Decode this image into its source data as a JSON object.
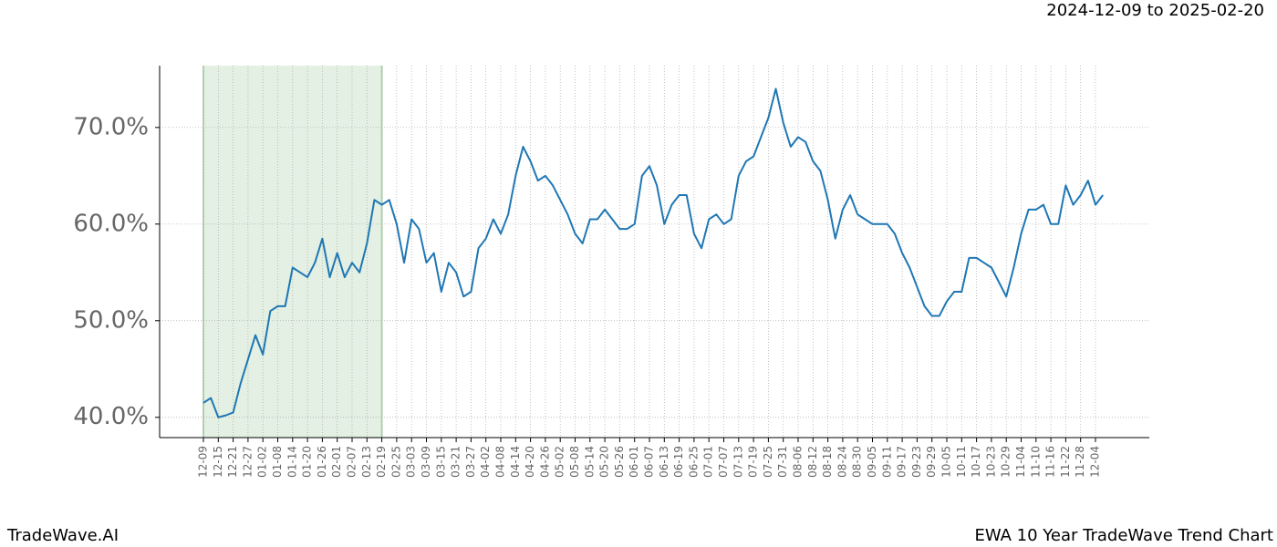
{
  "chart_data": {
    "type": "line",
    "date_range": "2024-12-09 to 2025-02-20",
    "brand": "TradeWave.AI",
    "title": "EWA 10 Year TradeWave Trend Chart",
    "categories": [
      "12-09",
      null,
      "12-15",
      null,
      "12-21",
      null,
      "12-27",
      null,
      "01-02",
      null,
      "01-08",
      null,
      "01-14",
      null,
      "01-20",
      null,
      "01-26",
      null,
      "02-01",
      null,
      "02-07",
      null,
      "02-13",
      null,
      "02-19",
      null,
      "02-25",
      null,
      "03-03",
      null,
      "03-09",
      null,
      "03-15",
      null,
      "03-21",
      null,
      "03-27",
      null,
      "04-02",
      null,
      "04-08",
      null,
      "04-14",
      null,
      "04-20",
      null,
      "04-26",
      null,
      "05-02",
      null,
      "05-08",
      null,
      "05-14",
      null,
      "05-20",
      null,
      "05-26",
      null,
      "06-01",
      null,
      "06-07",
      null,
      "06-13",
      null,
      "06-19",
      null,
      "06-25",
      null,
      "07-01",
      null,
      "07-07",
      null,
      "07-13",
      null,
      "07-19",
      null,
      "07-25",
      null,
      "07-31",
      null,
      "08-06",
      null,
      "08-12",
      null,
      "08-18",
      null,
      "08-24",
      null,
      "08-30",
      null,
      "09-05",
      null,
      "09-11",
      null,
      "09-17",
      null,
      "09-23",
      null,
      "09-29",
      null,
      "10-05",
      null,
      "10-11",
      null,
      "10-17",
      null,
      "10-23",
      null,
      "10-29",
      null,
      "11-04",
      null,
      "11-10",
      null,
      "11-16",
      null,
      "11-22",
      null,
      "11-28",
      null,
      "12-04",
      null
    ],
    "series": [
      {
        "name": "EWA",
        "color": "#1f77b4",
        "values": [
          41.5,
          42,
          40,
          40.2,
          40.5,
          43.5,
          46,
          48.5,
          46.5,
          51,
          51.5,
          51.5,
          55.5,
          55,
          54.5,
          56,
          58.5,
          54.5,
          57,
          54.5,
          56,
          55,
          58,
          62.5,
          62,
          62.5,
          60,
          56,
          60.5,
          59.5,
          56,
          57,
          53,
          56,
          55,
          52.5,
          53,
          57.5,
          58.5,
          60.5,
          59,
          61,
          65,
          68,
          66.5,
          64.5,
          65,
          64,
          62.5,
          61,
          59,
          58,
          60.5,
          60.5,
          61.5,
          60.5,
          59.5,
          59.5,
          60,
          65,
          66,
          64,
          60,
          62,
          63,
          63,
          59,
          57.5,
          60.5,
          61,
          60,
          60.5,
          65,
          66.5,
          67,
          69,
          71,
          74,
          70.5,
          68,
          69,
          68.5,
          66.5,
          65.5,
          62.5,
          58.5,
          61.5,
          63,
          61,
          60.5,
          60,
          60,
          60,
          59,
          57,
          55.5,
          53.5,
          51.5,
          50.5,
          50.5,
          52,
          53,
          53,
          56.5,
          56.5,
          56,
          55.5,
          54,
          52.5,
          55.5,
          59,
          61.5,
          61.5,
          62,
          60,
          60,
          64,
          62,
          63,
          64.5,
          62,
          63
        ]
      }
    ],
    "ylim": [
      37.9,
      76.4
    ],
    "yticks": [
      {
        "value": 40,
        "label": "40.0%"
      },
      {
        "value": 50,
        "label": "50.0%"
      },
      {
        "value": 60,
        "label": "60.0%"
      },
      {
        "value": 70,
        "label": "70.0%"
      }
    ],
    "shade": {
      "from": "12-09",
      "to": "02-19",
      "color": "#c8e2c8"
    },
    "grid": true
  }
}
